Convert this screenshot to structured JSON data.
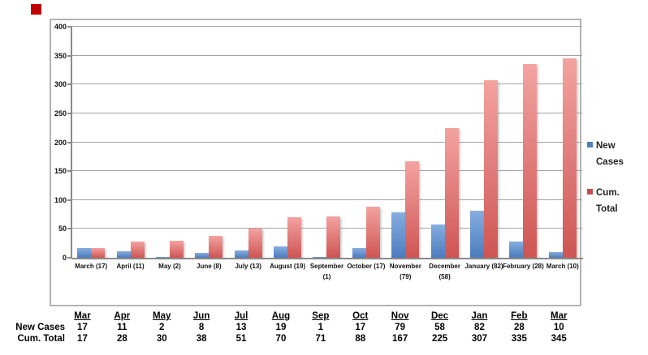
{
  "marker": {
    "color": "#C00000"
  },
  "chart_data": {
    "type": "bar",
    "title": "",
    "xlabel": "",
    "ylabel": "",
    "ylim": [
      0,
      400
    ],
    "ytick_step": 50,
    "yticks": [
      0,
      50,
      100,
      150,
      200,
      250,
      300,
      350,
      400
    ],
    "grid": true,
    "legend_position": "right",
    "categories": [
      "March (17)",
      "April (11)",
      "May (2)",
      "June (8)",
      "July (13)",
      "August (19)",
      "September (1)",
      "October (17)",
      "November (79)",
      "December (58)",
      "January (82)",
      "February (28)",
      "March (10)"
    ],
    "category_label_lines": [
      [
        "March (17)"
      ],
      [
        "April (11)"
      ],
      [
        "May (2)"
      ],
      [
        "June (8)"
      ],
      [
        "July (13)"
      ],
      [
        "August (19)"
      ],
      [
        "September",
        "(1)"
      ],
      [
        "October (17)"
      ],
      [
        "November",
        "(79)"
      ],
      [
        "December",
        "(58)"
      ],
      [
        "January (82)"
      ],
      [
        "February (28)"
      ],
      [
        "March (10)"
      ]
    ],
    "series": [
      {
        "name": "New Cases",
        "legend_color": "#4F81BD",
        "color_top": "#86AEDF",
        "color_bottom": "#4C7CBE",
        "values": [
          17,
          11,
          2,
          8,
          13,
          19,
          1,
          17,
          79,
          58,
          82,
          28,
          10
        ]
      },
      {
        "name": "Cum. Total",
        "legend_color": "#C0504D",
        "color_top": "#F3A3A1",
        "color_bottom": "#CE5553",
        "values": [
          17,
          28,
          30,
          38,
          51,
          70,
          71,
          88,
          167,
          225,
          307,
          335,
          345
        ]
      }
    ]
  },
  "legend": {
    "items": [
      {
        "line1": "New",
        "line2": "Cases",
        "color": "#4F81BD"
      },
      {
        "line1": "Cum.",
        "line2": "Total",
        "color": "#C0504D"
      }
    ]
  },
  "table": {
    "headers": [
      "Mar",
      "Apr",
      "May",
      "Jun",
      "Jul",
      "Aug",
      "Sep",
      "Oct",
      "Nov",
      "Dec",
      "Jan",
      "Feb",
      "Mar"
    ],
    "rows": [
      {
        "label": "New Cases",
        "values": [
          "17",
          "11",
          "2",
          "8",
          "13",
          "19",
          "1",
          "17",
          "79",
          "58",
          "82",
          "28",
          "10"
        ]
      },
      {
        "label": "Cum. Total",
        "values": [
          "17",
          "28",
          "30",
          "38",
          "51",
          "70",
          "71",
          "88",
          "167",
          "225",
          "307",
          "335",
          "345"
        ]
      }
    ]
  }
}
